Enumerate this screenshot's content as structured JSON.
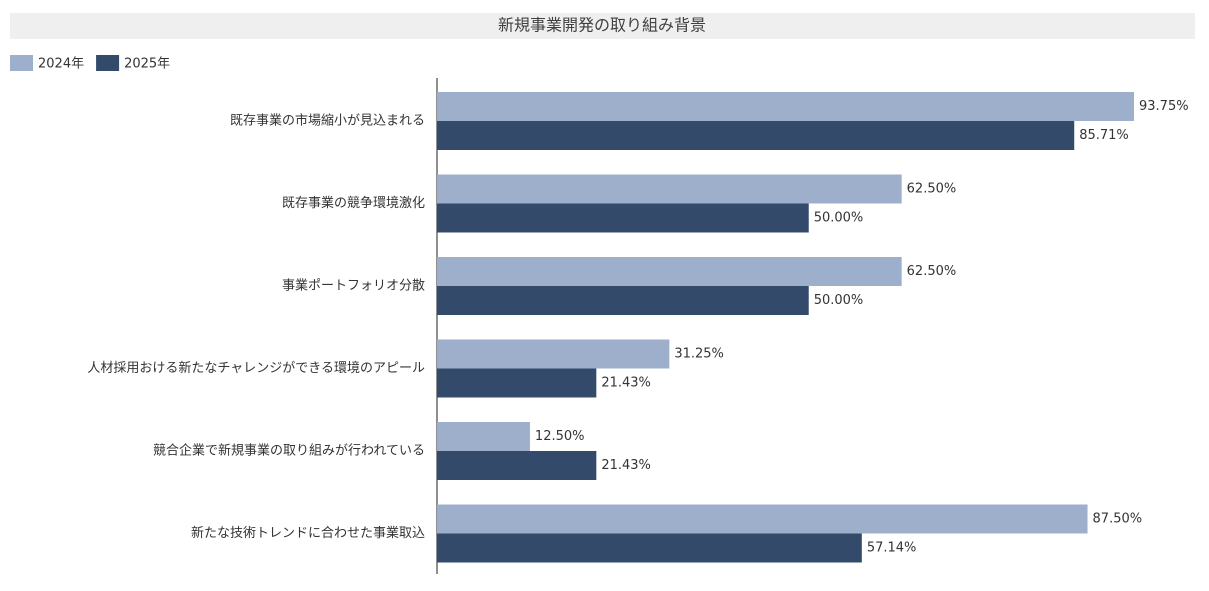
{
  "chart_data": {
    "type": "bar",
    "orientation": "horizontal",
    "title": "新規事業開発の取り組み背景",
    "categories": [
      "既存事業の市場縮小が見込まれる",
      "既存事業の競争環境激化",
      "事業ポートフォリオ分散",
      "人材採用おける新たなチャレンジができる環境のアピール",
      "競合企業で新規事業の取り組みが行われている",
      "新たな技術トレンドに合わせた事業取込"
    ],
    "series": [
      {
        "name": "2024年",
        "color": "#9eafcb",
        "values": [
          93.75,
          62.5,
          62.5,
          31.25,
          12.5,
          87.5
        ],
        "value_labels": [
          "93.75%",
          "62.50%",
          "62.50%",
          "31.25%",
          "12.50%",
          "87.50%"
        ]
      },
      {
        "name": "2025年",
        "color": "#344a6b",
        "values": [
          85.71,
          50,
          50,
          21.43,
          21.43,
          57.14
        ],
        "value_labels": [
          "85.71%",
          "50.00%",
          "50.00%",
          "21.43%",
          "21.43%",
          "57.14%"
        ]
      }
    ],
    "legend": "top-left",
    "grid": false
  }
}
